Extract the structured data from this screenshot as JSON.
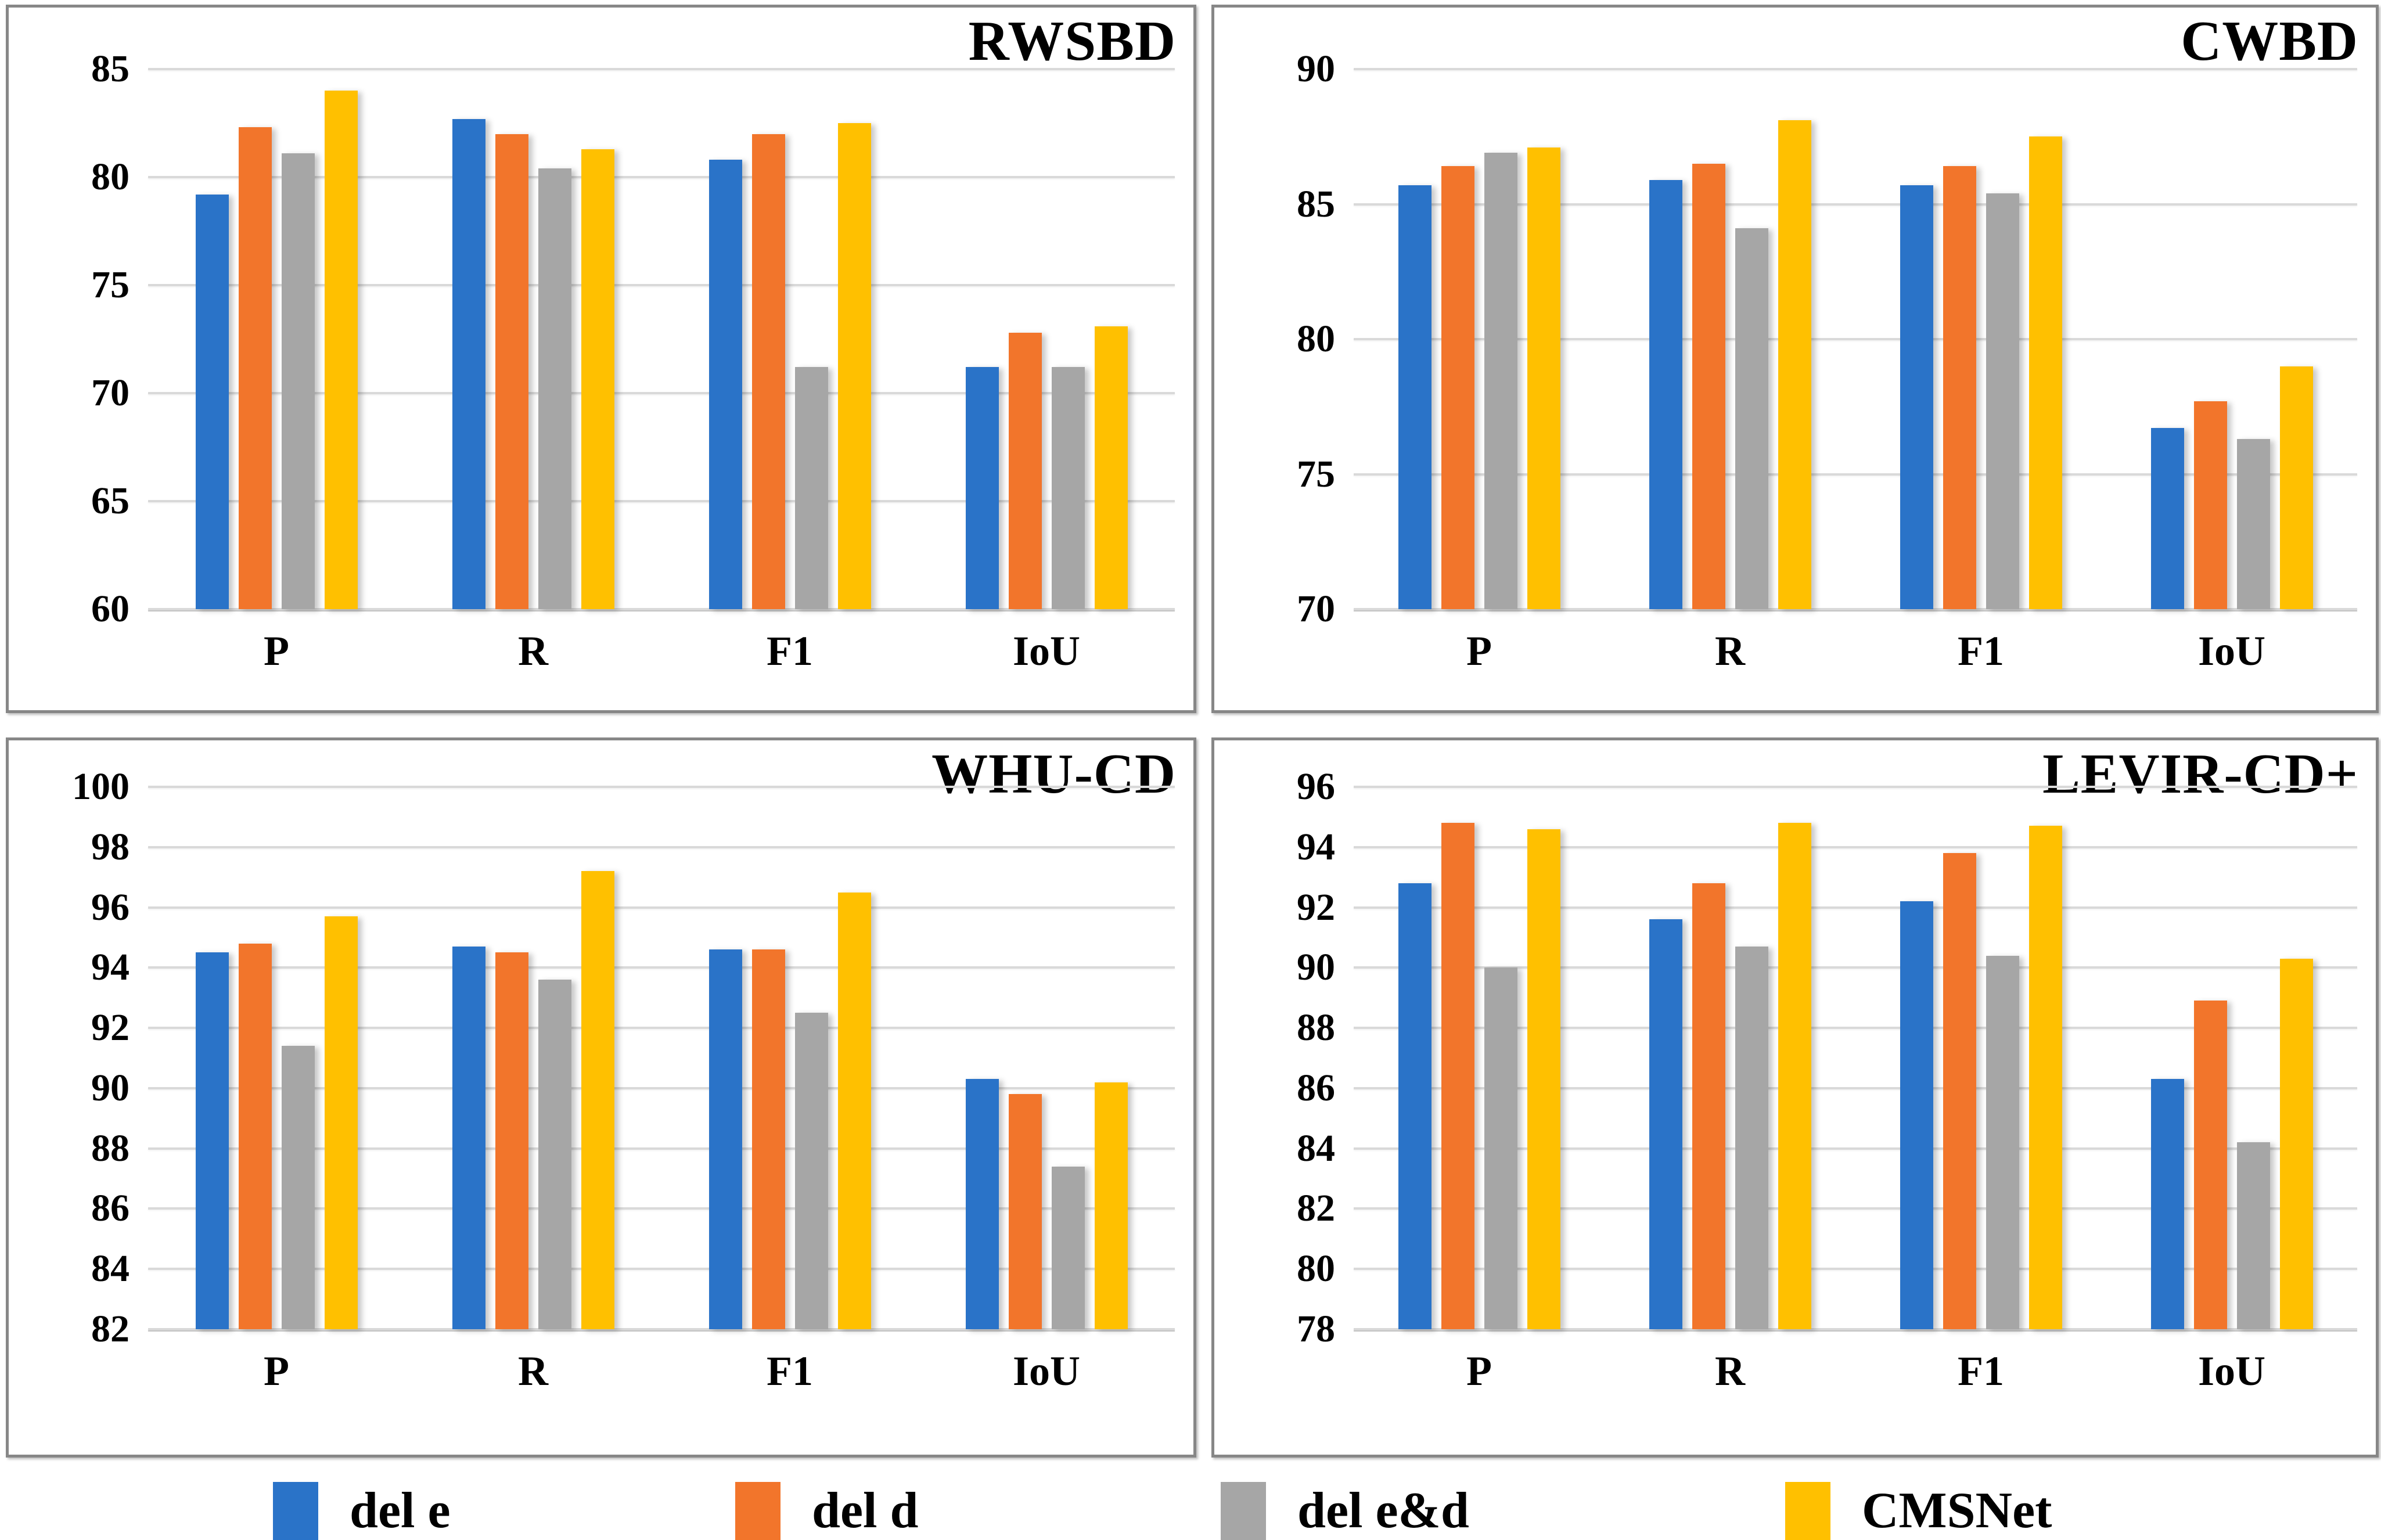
{
  "colors": {
    "del_e": "#2A73C8",
    "del_d": "#F2752B",
    "del_ed": "#A6A6A6",
    "cmsnet": "#FFC000",
    "gridline": "#D9D9D9",
    "panel_border": "#878787",
    "text": "#000000"
  },
  "legend": {
    "items": [
      {
        "label": "del e",
        "color": "#2A73C8"
      },
      {
        "label": "del d",
        "color": "#F2752B"
      },
      {
        "label": "del e&d",
        "color": "#A6A6A6"
      },
      {
        "label": "CMSNet",
        "color": "#FFC000"
      }
    ]
  },
  "chart_data": [
    {
      "type": "bar",
      "title": "RWSBD",
      "categories": [
        "P",
        "R",
        "F1",
        "IoU"
      ],
      "ylim": [
        60,
        85
      ],
      "ytick_step": 5,
      "grid": true,
      "legend_position": "shared-bottom",
      "series": [
        {
          "name": "del e",
          "color": "#2A73C8",
          "values": [
            79.2,
            82.7,
            80.8,
            71.2
          ]
        },
        {
          "name": "del d",
          "color": "#F2752B",
          "values": [
            82.3,
            82.0,
            82.0,
            72.8
          ]
        },
        {
          "name": "del e&d",
          "color": "#A6A6A6",
          "values": [
            81.1,
            80.4,
            71.2,
            71.2
          ]
        },
        {
          "name": "CMSNet",
          "color": "#FFC000",
          "values": [
            84.0,
            81.3,
            82.5,
            73.1
          ]
        }
      ]
    },
    {
      "type": "bar",
      "title": "CWBD",
      "categories": [
        "P",
        "R",
        "F1",
        "IoU"
      ],
      "ylim": [
        70,
        90
      ],
      "ytick_step": 5,
      "grid": true,
      "legend_position": "shared-bottom",
      "series": [
        {
          "name": "del e",
          "color": "#2A73C8",
          "values": [
            85.7,
            85.9,
            85.7,
            76.7
          ]
        },
        {
          "name": "del d",
          "color": "#F2752B",
          "values": [
            86.4,
            86.5,
            86.4,
            77.7
          ]
        },
        {
          "name": "del e&d",
          "color": "#A6A6A6",
          "values": [
            86.9,
            84.1,
            85.4,
            76.3
          ]
        },
        {
          "name": "CMSNet",
          "color": "#FFC000",
          "values": [
            87.1,
            88.1,
            87.5,
            79.0
          ]
        }
      ]
    },
    {
      "type": "bar",
      "title": "WHU-CD",
      "categories": [
        "P",
        "R",
        "F1",
        "IoU"
      ],
      "ylim": [
        82,
        100
      ],
      "ytick_step": 2,
      "grid": true,
      "legend_position": "shared-bottom",
      "series": [
        {
          "name": "del e",
          "color": "#2A73C8",
          "values": [
            94.5,
            94.7,
            94.6,
            90.3
          ]
        },
        {
          "name": "del d",
          "color": "#F2752B",
          "values": [
            94.8,
            94.5,
            94.6,
            89.8
          ]
        },
        {
          "name": "del e&d",
          "color": "#A6A6A6",
          "values": [
            91.4,
            93.6,
            92.5,
            87.4
          ]
        },
        {
          "name": "CMSNet",
          "color": "#FFC000",
          "values": [
            95.7,
            97.2,
            96.5,
            90.2
          ]
        }
      ]
    },
    {
      "type": "bar",
      "title": "LEVIR-CD+",
      "categories": [
        "P",
        "R",
        "F1",
        "IoU"
      ],
      "ylim": [
        78,
        96
      ],
      "ytick_step": 2,
      "grid": true,
      "legend_position": "shared-bottom",
      "series": [
        {
          "name": "del e",
          "color": "#2A73C8",
          "values": [
            92.8,
            91.6,
            92.2,
            86.3
          ]
        },
        {
          "name": "del d",
          "color": "#F2752B",
          "values": [
            94.8,
            92.8,
            93.8,
            88.9
          ]
        },
        {
          "name": "del e&d",
          "color": "#A6A6A6",
          "values": [
            90.0,
            90.7,
            90.4,
            84.2
          ]
        },
        {
          "name": "CMSNet",
          "color": "#FFC000",
          "values": [
            94.6,
            94.8,
            94.7,
            90.3
          ]
        }
      ]
    }
  ]
}
